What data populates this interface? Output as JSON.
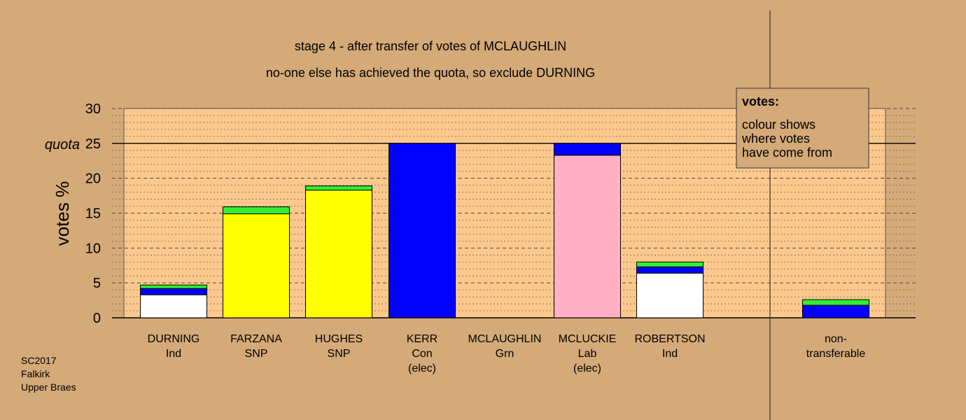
{
  "colors": {
    "background": "#d4aa78",
    "plot_area": "#fdc88c",
    "white": "#ffffff",
    "blue": "#0000ff",
    "green": "#33ee33",
    "yellow": "#ffff00",
    "pink": "#ffb0c4"
  },
  "chart_data": {
    "type": "bar",
    "stacked": true,
    "title": "stage 4 - after transfer of votes of MCLAUGHLIN",
    "subtitle": "no-one else has achieved the quota, so exclude DURNING",
    "ylabel": "votes %",
    "ylim": [
      0,
      30
    ],
    "yticks": [
      "0",
      "5",
      "10",
      "15",
      "20",
      "25",
      "30"
    ],
    "quota_value": 25,
    "quota_label": "quota",
    "grid": true,
    "categories": [
      [
        "DURNING",
        "Ind"
      ],
      [
        "FARZANA",
        "SNP"
      ],
      [
        "HUGHES",
        "SNP"
      ],
      [
        "KERR",
        "Con",
        "(elec)"
      ],
      [
        "MCLAUGHLIN",
        "Grn"
      ],
      [
        "MCLUCKIE",
        "Lab",
        "(elec)"
      ],
      [
        "ROBERTSON",
        "Ind"
      ],
      [
        "non-",
        "transferable"
      ]
    ],
    "bars": [
      {
        "segments": [
          {
            "color": "#ffffff",
            "value": 3.3
          },
          {
            "color": "#0000ff",
            "value": 0.9
          },
          {
            "color": "#33ee33",
            "value": 0.5
          }
        ]
      },
      {
        "segments": [
          {
            "color": "#ffff00",
            "value": 14.9
          },
          {
            "color": "#33ee33",
            "value": 1.0
          }
        ]
      },
      {
        "segments": [
          {
            "color": "#ffff00",
            "value": 18.3
          },
          {
            "color": "#33ee33",
            "value": 0.6
          }
        ]
      },
      {
        "segments": [
          {
            "color": "#0000ff",
            "value": 25.0
          }
        ]
      },
      {
        "segments": []
      },
      {
        "segments": [
          {
            "color": "#ffb0c4",
            "value": 23.3
          },
          {
            "color": "#0000ff",
            "value": 1.7
          }
        ]
      },
      {
        "segments": [
          {
            "color": "#ffffff",
            "value": 6.4
          },
          {
            "color": "#0000ff",
            "value": 0.9
          },
          {
            "color": "#33ee33",
            "value": 0.7
          }
        ]
      },
      {
        "segments": [
          {
            "color": "#0000ff",
            "value": 1.8
          },
          {
            "color": "#33ee33",
            "value": 0.8
          }
        ]
      }
    ],
    "legend": {
      "title": "votes:",
      "lines": [
        "colour shows",
        "where votes",
        "have come from"
      ],
      "position": "top-right"
    }
  },
  "footer": [
    "SC2017",
    "Falkirk",
    "Upper Braes"
  ]
}
